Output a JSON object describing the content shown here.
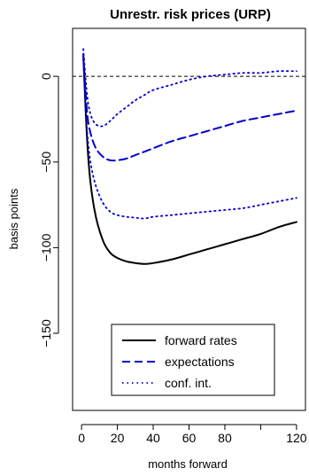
{
  "chart_data": {
    "type": "line",
    "title": "Unrestr. risk prices (URP)",
    "xlabel": "months forward",
    "ylabel": "basis points",
    "xlim": [
      -5,
      125
    ],
    "ylim": [
      -195,
      28
    ],
    "x_ticks": [
      0,
      20,
      40,
      60,
      80,
      120
    ],
    "y_ticks": [
      0,
      -50,
      -100,
      -150
    ],
    "reference_line": {
      "y": 0,
      "style": "dashed",
      "color": "#000000"
    },
    "legend_position": "bottom-center",
    "series": [
      {
        "name": "forward rates",
        "style": "solid",
        "color": "#000000",
        "x": [
          1,
          3,
          5,
          8,
          12,
          16,
          20,
          25,
          30,
          35,
          40,
          50,
          60,
          70,
          80,
          90,
          100,
          110,
          120
        ],
        "y": [
          12,
          -35,
          -62,
          -82,
          -96,
          -103,
          -106,
          -108,
          -109,
          -109.5,
          -109,
          -107,
          -104,
          -101,
          -98,
          -95,
          -92,
          -88,
          -85
        ]
      },
      {
        "name": "expectations",
        "style": "dashed",
        "color": "#0000cc",
        "x": [
          1,
          3,
          5,
          8,
          12,
          16,
          20,
          25,
          30,
          40,
          50,
          60,
          70,
          80,
          90,
          100,
          110,
          120
        ],
        "y": [
          13,
          -20,
          -33,
          -42,
          -47,
          -49,
          -49,
          -48,
          -46,
          -42,
          -38,
          -35,
          -32,
          -29,
          -26,
          -24,
          -22,
          -20
        ]
      },
      {
        "name": "conf. int.",
        "style": "dotted",
        "color": "#0000cc",
        "x": [
          1,
          3,
          5,
          8,
          12,
          16,
          20,
          25,
          30,
          35,
          40,
          50,
          60,
          70,
          80,
          90,
          100,
          110,
          120
        ],
        "y": [
          16,
          -10,
          -22,
          -28,
          -29,
          -26,
          -22,
          -18,
          -14,
          -11,
          -8,
          -5,
          -2,
          0,
          1,
          2,
          2,
          3,
          3
        ]
      },
      {
        "name": "conf. int. lower",
        "style": "dotted",
        "color": "#0000cc",
        "x": [
          1,
          3,
          5,
          8,
          12,
          16,
          20,
          25,
          30,
          35,
          40,
          50,
          60,
          70,
          80,
          90,
          100,
          110,
          120
        ],
        "y": [
          10,
          -30,
          -50,
          -64,
          -74,
          -79,
          -81,
          -82,
          -82.5,
          -83,
          -82,
          -81,
          -80,
          -79,
          -78,
          -77,
          -75,
          -73,
          -71
        ]
      }
    ]
  }
}
